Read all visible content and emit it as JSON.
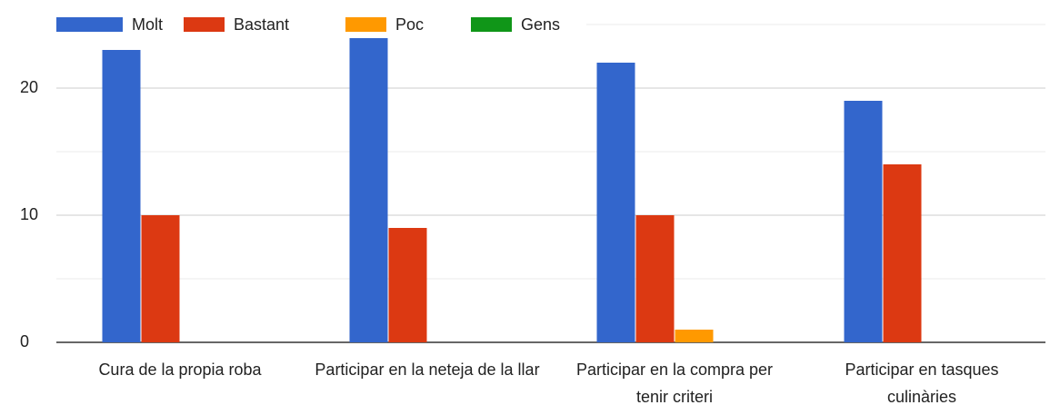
{
  "chart_data": {
    "type": "bar",
    "categories": [
      "Cura de la propia roba",
      "Participar en la neteja de la llar",
      "Participar en la compra per tenir criteri",
      "Participar en tasques culinàries"
    ],
    "series": [
      {
        "name": "Molt",
        "color": "#3366cc",
        "values": [
          23,
          24,
          22,
          19
        ]
      },
      {
        "name": "Bastant",
        "color": "#dc3912",
        "values": [
          10,
          9,
          10,
          14
        ]
      },
      {
        "name": "Poc",
        "color": "#ff9900",
        "values": [
          0,
          0,
          1,
          0
        ]
      },
      {
        "name": "Gens",
        "color": "#109618",
        "values": [
          0,
          0,
          0,
          0
        ]
      }
    ],
    "ylim": [
      0,
      25
    ],
    "yticks": [
      0,
      10,
      20
    ],
    "y_minor_ticks": [
      5,
      15,
      25
    ],
    "grid": true,
    "legend": "top"
  }
}
